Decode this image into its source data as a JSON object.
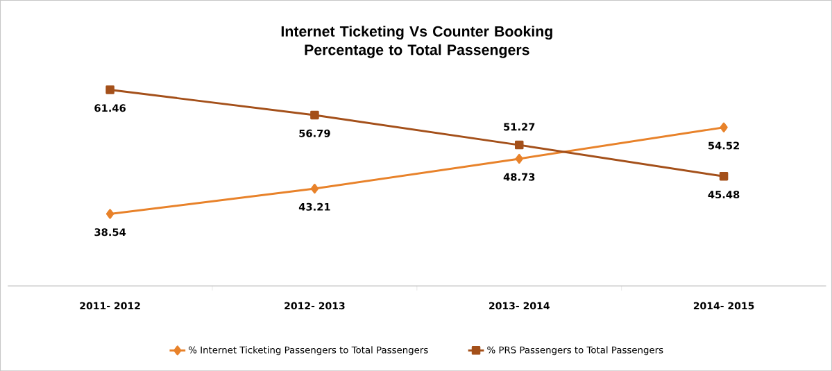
{
  "chart_data": {
    "type": "line",
    "title": "Internet Ticketing Vs Counter Booking Percentage to Total Passengers",
    "categories": [
      "2011- 2012",
      "2012- 2013",
      "2013- 2014",
      "2014- 2015"
    ],
    "series": [
      {
        "name": "% Internet Ticketing Passengers to Total Passengers",
        "color": "#e8822a",
        "marker": "diamond",
        "values": [
          38.54,
          43.21,
          48.73,
          54.52
        ]
      },
      {
        "name": "% PRS Passengers to Total Passengers",
        "color": "#a4501a",
        "marker": "square",
        "values": [
          61.46,
          56.79,
          51.27,
          45.48
        ]
      }
    ],
    "data_labels": true,
    "legend": "bottom",
    "line_style": "solid"
  }
}
